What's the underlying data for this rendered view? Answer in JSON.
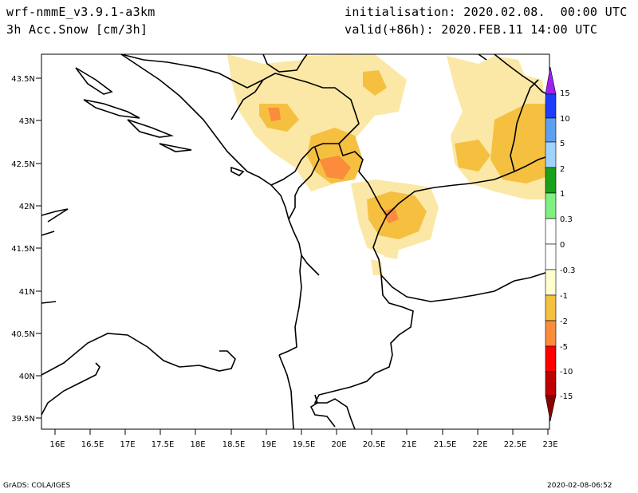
{
  "header": {
    "model": "wrf-nmmE_v3.9.1-a3km",
    "variable": "3h Acc.Snow [cm/3h]",
    "initialisation": "initialisation: 2020.02.08.  00:00 UTC",
    "valid": "valid(+86h): 2020.FEB.11 14:00 UTC"
  },
  "map": {
    "lon_ticks": [
      "16E",
      "16.5E",
      "17E",
      "17.5E",
      "18E",
      "18.5E",
      "19E",
      "19.5E",
      "20E",
      "20.5E",
      "21E",
      "21.5E",
      "22E",
      "22.5E",
      "23E"
    ],
    "lat_ticks": [
      "43.5N",
      "43N",
      "42.5N",
      "42N",
      "41.5N",
      "41N",
      "40.5N",
      "40N",
      "39.5N"
    ]
  },
  "colorbar": {
    "labels": [
      "15",
      "10",
      "5",
      "2",
      "1",
      "0.3",
      "0",
      "-0.3",
      "-1",
      "-2",
      "-5",
      "-10",
      "-15"
    ],
    "colors": {
      "purple": "#a020f0",
      "blue_dark": "#1e3cff",
      "blue": "#5ea0f0",
      "blue_light": "#a0d2ff",
      "green_dark": "#1aa01a",
      "green_light": "#80f080",
      "white": "#ffffff",
      "cream": "#ffffd0",
      "light_orange": "#f5c040",
      "orange": "#fa8c3c",
      "red": "#ff0000",
      "dark_red": "#c00000",
      "maroon": "#8b0000"
    }
  },
  "footer": {
    "left": "GrADS: COLA/IGES",
    "right": "2020-02-08-06:52"
  }
}
